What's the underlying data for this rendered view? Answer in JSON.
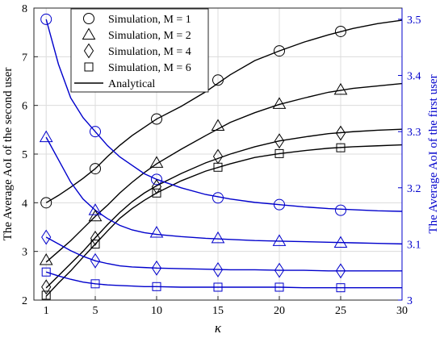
{
  "chart_data": {
    "type": "line",
    "xlabel": "κ",
    "ylabel_left": "The Average AoI of the second user",
    "ylabel_right": "The Average AoI of the first user",
    "x": [
      1,
      5,
      10,
      15,
      20,
      25,
      30
    ],
    "xticks": [
      "1",
      "5",
      "10",
      "15",
      "20",
      "25",
      "30"
    ],
    "xlim": [
      0,
      30
    ],
    "ylim_left": [
      2,
      8
    ],
    "yticks_left": [
      "2",
      "3",
      "4",
      "5",
      "6",
      "7",
      "8"
    ],
    "ylim_right": [
      3.0,
      3.52
    ],
    "yticks_right": [
      "3",
      "3.1",
      "3.2",
      "3.3",
      "3.4",
      "3.5"
    ],
    "grid": true,
    "legend_position": "top-left",
    "legend": [
      {
        "label": "Simulation, M = 1",
        "marker": "circle"
      },
      {
        "label": "Simulation, M = 2",
        "marker": "triangle"
      },
      {
        "label": "Simulation, M = 4",
        "marker": "diamond"
      },
      {
        "label": "Simulation, M = 6",
        "marker": "square"
      },
      {
        "label": "Analytical",
        "marker": "line"
      }
    ],
    "colors": {
      "left_axis": "#000000",
      "right_axis": "#0000cc"
    },
    "series": [
      {
        "axis": "left",
        "marker": "circle",
        "color": "#000000",
        "x": [
          1,
          5,
          10,
          15,
          20,
          25
        ],
        "values": [
          4.0,
          4.7,
          5.72,
          6.52,
          7.12,
          7.52
        ],
        "line_x": [
          1,
          2,
          3,
          4,
          5,
          6,
          7,
          8,
          9,
          10,
          12,
          14,
          16,
          18,
          20,
          22,
          24,
          26,
          28,
          30
        ],
        "line_y": [
          4.0,
          4.15,
          4.32,
          4.5,
          4.7,
          4.95,
          5.18,
          5.38,
          5.55,
          5.72,
          5.98,
          6.28,
          6.63,
          6.92,
          7.12,
          7.3,
          7.45,
          7.58,
          7.68,
          7.75
        ]
      },
      {
        "axis": "left",
        "marker": "triangle",
        "color": "#000000",
        "x": [
          1,
          5,
          10,
          15,
          20,
          25
        ],
        "values": [
          2.82,
          3.72,
          4.82,
          5.58,
          6.03,
          6.32
        ],
        "line_x": [
          1,
          2,
          3,
          4,
          5,
          6,
          7,
          8,
          9,
          10,
          12,
          14,
          16,
          18,
          20,
          22,
          24,
          26,
          28,
          30
        ],
        "line_y": [
          2.78,
          3.0,
          3.22,
          3.47,
          3.72,
          3.95,
          4.2,
          4.42,
          4.62,
          4.8,
          5.1,
          5.38,
          5.65,
          5.85,
          6.02,
          6.15,
          6.27,
          6.35,
          6.4,
          6.45
        ]
      },
      {
        "axis": "left",
        "marker": "diamond",
        "color": "#000000",
        "x": [
          1,
          5,
          10,
          15,
          20,
          25
        ],
        "values": [
          2.27,
          3.27,
          4.33,
          4.95,
          5.27,
          5.43
        ],
        "line_x": [
          1,
          2,
          3,
          4,
          5,
          6,
          7,
          8,
          9,
          10,
          12,
          14,
          16,
          18,
          20,
          22,
          24,
          26,
          28,
          30
        ],
        "line_y": [
          2.25,
          2.5,
          2.75,
          3.0,
          3.28,
          3.55,
          3.8,
          4.02,
          4.2,
          4.35,
          4.6,
          4.82,
          5.0,
          5.15,
          5.27,
          5.35,
          5.42,
          5.46,
          5.49,
          5.51
        ]
      },
      {
        "axis": "left",
        "marker": "square",
        "color": "#000000",
        "x": [
          1,
          5,
          10,
          15,
          20,
          25
        ],
        "values": [
          2.1,
          3.15,
          4.2,
          4.73,
          5.01,
          5.13
        ],
        "line_x": [
          1,
          2,
          3,
          4,
          5,
          6,
          7,
          8,
          9,
          10,
          12,
          14,
          16,
          18,
          20,
          22,
          24,
          26,
          28,
          30
        ],
        "line_y": [
          2.08,
          2.35,
          2.6,
          2.88,
          3.15,
          3.42,
          3.68,
          3.88,
          4.05,
          4.2,
          4.45,
          4.65,
          4.8,
          4.93,
          5.01,
          5.07,
          5.12,
          5.15,
          5.17,
          5.19
        ]
      },
      {
        "axis": "right",
        "marker": "circle",
        "color": "#0000cc",
        "x": [
          1,
          5,
          10,
          15,
          20,
          25
        ],
        "values": [
          3.5,
          3.3,
          3.215,
          3.182,
          3.17,
          3.16
        ],
        "line_x": [
          1,
          2,
          3,
          4,
          5,
          6,
          7,
          8,
          9,
          10,
          12,
          14,
          16,
          18,
          20,
          22,
          24,
          26,
          28,
          30
        ],
        "line_y": [
          3.5,
          3.42,
          3.36,
          3.325,
          3.3,
          3.275,
          3.255,
          3.24,
          3.225,
          3.215,
          3.2,
          3.188,
          3.18,
          3.174,
          3.17,
          3.166,
          3.163,
          3.161,
          3.159,
          3.158
        ]
      },
      {
        "axis": "right",
        "marker": "triangle",
        "color": "#0000cc",
        "x": [
          1,
          5,
          10,
          15,
          20,
          25
        ],
        "values": [
          3.29,
          3.16,
          3.12,
          3.11,
          3.105,
          3.102
        ],
        "line_x": [
          1,
          2,
          3,
          4,
          5,
          6,
          7,
          8,
          9,
          10,
          12,
          14,
          16,
          18,
          20,
          22,
          24,
          26,
          28,
          30
        ],
        "line_y": [
          3.29,
          3.25,
          3.21,
          3.18,
          3.16,
          3.145,
          3.133,
          3.125,
          3.12,
          3.117,
          3.113,
          3.11,
          3.108,
          3.106,
          3.105,
          3.104,
          3.103,
          3.102,
          3.101,
          3.1
        ]
      },
      {
        "axis": "right",
        "marker": "diamond",
        "color": "#0000cc",
        "x": [
          1,
          5,
          10,
          15,
          20,
          25
        ],
        "values": [
          3.112,
          3.07,
          3.057,
          3.054,
          3.053,
          3.052
        ],
        "line_x": [
          1,
          2,
          3,
          4,
          5,
          6,
          7,
          8,
          9,
          10,
          12,
          14,
          16,
          18,
          20,
          22,
          24,
          26,
          28,
          30
        ],
        "line_y": [
          3.112,
          3.1,
          3.088,
          3.078,
          3.07,
          3.065,
          3.061,
          3.059,
          3.058,
          3.057,
          3.056,
          3.055,
          3.054,
          3.054,
          3.053,
          3.053,
          3.052,
          3.052,
          3.052,
          3.052
        ]
      },
      {
        "axis": "right",
        "marker": "square",
        "color": "#0000cc",
        "x": [
          1,
          5,
          10,
          15,
          20,
          25
        ],
        "values": [
          3.05,
          3.029,
          3.024,
          3.023,
          3.023,
          3.022
        ],
        "line_x": [
          1,
          2,
          3,
          4,
          5,
          6,
          7,
          8,
          9,
          10,
          12,
          14,
          16,
          18,
          20,
          22,
          24,
          26,
          28,
          30
        ],
        "line_y": [
          3.05,
          3.043,
          3.037,
          3.032,
          3.029,
          3.027,
          3.026,
          3.025,
          3.024,
          3.024,
          3.023,
          3.023,
          3.023,
          3.023,
          3.023,
          3.022,
          3.022,
          3.022,
          3.022,
          3.022
        ]
      }
    ]
  }
}
